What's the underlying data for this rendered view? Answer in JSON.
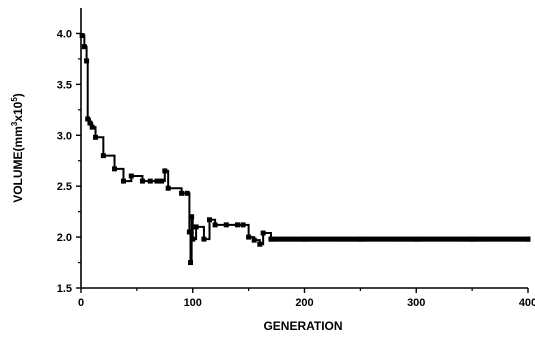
{
  "chart_data": {
    "type": "line",
    "xlabel": "GENERATION",
    "ylabel_main": "VOLUME(mm",
    "ylabel_sup1": "3",
    "ylabel_mid": "x10",
    "ylabel_sup2": "5",
    "ylabel_end": ")",
    "xlim": [
      0,
      400
    ],
    "ylim": [
      1.5,
      4.25
    ],
    "xticks": [
      0,
      100,
      200,
      300,
      400
    ],
    "yticks": [
      1.5,
      2.0,
      2.5,
      3.0,
      3.5,
      4.0
    ],
    "xtick_labels": [
      "0",
      "100",
      "200",
      "300",
      "400"
    ],
    "ytick_labels": [
      "1.5",
      "2.0",
      "2.5",
      "3.0",
      "3.5",
      "4.0"
    ],
    "grid": false,
    "series": [
      {
        "x": [
          1,
          3,
          5,
          6,
          8,
          10,
          13,
          20,
          30,
          38,
          45,
          55,
          62,
          68,
          72,
          75,
          78,
          90,
          95,
          97,
          98,
          99,
          100,
          103,
          110,
          115,
          120,
          130,
          140,
          145,
          150,
          155,
          160,
          163,
          170,
          200,
          250,
          300,
          350,
          400
        ],
        "y": [
          3.98,
          3.87,
          3.73,
          3.16,
          3.12,
          3.08,
          2.98,
          2.8,
          2.67,
          2.55,
          2.6,
          2.55,
          2.55,
          2.55,
          2.55,
          2.65,
          2.48,
          2.43,
          2.43,
          2.05,
          1.75,
          2.2,
          1.98,
          2.1,
          1.98,
          2.17,
          2.12,
          2.12,
          2.12,
          2.12,
          2.0,
          1.97,
          1.93,
          2.04,
          1.98,
          1.98,
          1.98,
          1.98,
          1.98,
          1.98
        ]
      }
    ]
  }
}
